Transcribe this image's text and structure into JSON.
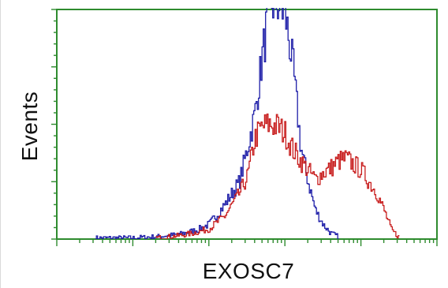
{
  "chart_data": {
    "type": "line",
    "title": "",
    "xlabel": "EXOSC7",
    "ylabel": "Events",
    "xscale": "log",
    "xlim": [
      1,
      100000
    ],
    "ylim": [
      0,
      200
    ],
    "grid": false,
    "legend": "none",
    "colors": {
      "frame": "#2e8b2e",
      "axes": "#2e8b2e",
      "series_blue": "#1e1ea8",
      "series_red": "#c81e1e"
    },
    "series": [
      {
        "color": "#1e1ea8",
        "x": [
          3.2,
          10,
          20,
          40,
          70,
          100,
          160,
          250,
          320,
          400,
          500,
          630,
          800,
          1000,
          1260,
          1600,
          2000,
          2500,
          3200,
          4000,
          5000
        ],
        "y": [
          1,
          1,
          2,
          4,
          8,
          13,
          30,
          50,
          80,
          110,
          160,
          205,
          205,
          195,
          150,
          80,
          50,
          25,
          12,
          5,
          2
        ]
      },
      {
        "color": "#c81e1e",
        "x": [
          20,
          40,
          60,
          100,
          160,
          250,
          320,
          400,
          500,
          630,
          800,
          1000,
          1260,
          1600,
          2000,
          2500,
          3200,
          4000,
          5000,
          6300,
          8000,
          10000,
          12600,
          16000,
          20000,
          25000,
          32000
        ],
        "y": [
          1,
          3,
          5,
          9,
          20,
          40,
          55,
          88,
          98,
          100,
          98,
          92,
          78,
          68,
          60,
          52,
          58,
          62,
          68,
          70,
          65,
          60,
          50,
          40,
          25,
          8,
          1
        ]
      }
    ]
  }
}
